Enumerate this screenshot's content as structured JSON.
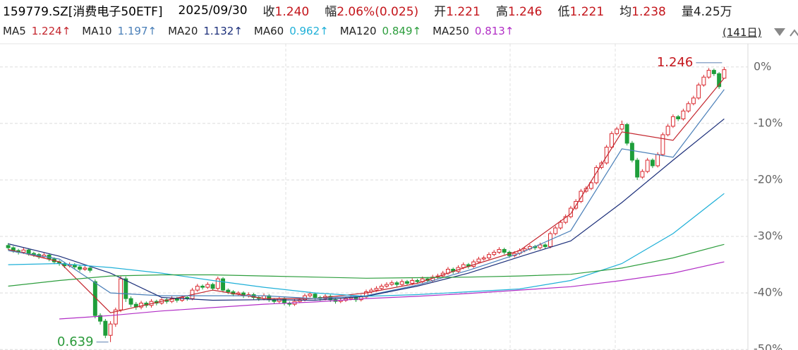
{
  "header": {
    "symbol": "159779.SZ[消费电子50ETF]",
    "date": "2025/09/30",
    "quotes": [
      {
        "label": "收",
        "value": "1.240",
        "color": "#c4161c"
      },
      {
        "label": "幅",
        "value": "2.06%(0.025)",
        "color": "#c4161c"
      },
      {
        "label": "开",
        "value": "1.221",
        "color": "#c4161c"
      },
      {
        "label": "高",
        "value": "1.246",
        "color": "#c4161c"
      },
      {
        "label": "低",
        "value": "1.221",
        "color": "#c4161c"
      },
      {
        "label": "均",
        "value": "1.238",
        "color": "#c4161c"
      },
      {
        "label": "量",
        "value": "4.25万",
        "color": "#222222"
      }
    ]
  },
  "chart_data": {
    "type": "candlestick",
    "period": "(141日)",
    "ylim": [
      -50.1,
      4.1
    ],
    "yticks": [
      {
        "value": 0,
        "label": "0%"
      },
      {
        "value": -10,
        "label": "-10%"
      },
      {
        "value": -20,
        "label": "-20%"
      },
      {
        "value": -30,
        "label": "-30%"
      },
      {
        "value": -40,
        "label": "-40%"
      },
      {
        "value": -50,
        "label": "-50%"
      }
    ],
    "grid": true,
    "up_color": "#d9262c",
    "down_color": "#1e9e3a",
    "annotations": [
      {
        "text": "1.246",
        "color": "#c4161c"
      },
      {
        "text": "0.639",
        "color": "#2a9a3a"
      }
    ],
    "ohlc": [
      [
        -31.6,
        -31.2,
        -32.4,
        -32
      ],
      [
        -32,
        -31.7,
        -32.9,
        -32.5
      ],
      [
        -32.5,
        -32.2,
        -33.2,
        -32.8
      ],
      [
        -32.8,
        -32,
        -33.1,
        -32.4
      ],
      [
        -32.4,
        -32.1,
        -33.4,
        -33
      ],
      [
        -33,
        -32.7,
        -33.6,
        -33.2
      ],
      [
        -33.2,
        -32.9,
        -34,
        -33.6
      ],
      [
        -33.6,
        -32.9,
        -33.9,
        -33.3
      ],
      [
        -33.3,
        -33,
        -34.4,
        -34
      ],
      [
        -34,
        -33.7,
        -34.9,
        -34.5
      ],
      [
        -34.5,
        -34.2,
        -35.2,
        -34.8
      ],
      [
        -34.8,
        -34.5,
        -35.6,
        -35.2
      ],
      [
        -35.2,
        -34.6,
        -35.5,
        -35
      ],
      [
        -35,
        -34.7,
        -35.8,
        -35.4
      ],
      [
        -35.4,
        -35.1,
        -36.2,
        -35.8
      ],
      [
        -35.8,
        -35.2,
        -36.1,
        -35.6
      ],
      [
        -35.6,
        -35.3,
        -36.4,
        -36
      ],
      [
        -38,
        -37.6,
        -44.5,
        -44
      ],
      [
        -44,
        -43.6,
        -45.6,
        -45
      ],
      [
        -45,
        -44.6,
        -48,
        -47.5
      ],
      [
        -47.5,
        -45,
        -48.7,
        -45.5
      ],
      [
        -45.5,
        -42.6,
        -46,
        -43
      ],
      [
        -43,
        -37,
        -43.4,
        -37.5
      ],
      [
        -37.5,
        -37.1,
        -41.6,
        -41
      ],
      [
        -41,
        -40.6,
        -42.5,
        -42
      ],
      [
        -42,
        -41.6,
        -43,
        -42.5
      ],
      [
        -42.5,
        -41.4,
        -42.9,
        -41.8
      ],
      [
        -41.8,
        -41.5,
        -42.6,
        -42.2
      ],
      [
        -42.2,
        -41.1,
        -42.6,
        -41.5
      ],
      [
        -41.5,
        -41.2,
        -42.2,
        -41.8
      ],
      [
        -41.8,
        -40.9,
        -42.1,
        -41.2
      ],
      [
        -41.2,
        -40.9,
        -41.9,
        -41.5
      ],
      [
        -41.5,
        -40.6,
        -41.8,
        -41
      ],
      [
        -41,
        -40.7,
        -41.7,
        -41.3
      ],
      [
        -41.3,
        -40.4,
        -41.6,
        -40.8
      ],
      [
        -40.8,
        -40.5,
        -41.4,
        -41
      ],
      [
        -41,
        -39.1,
        -41.3,
        -39.5
      ],
      [
        -39.5,
        -38.4,
        -39.8,
        -38.8
      ],
      [
        -38.8,
        -38.5,
        -39.4,
        -39
      ],
      [
        -39,
        -38.1,
        -39.3,
        -38.5
      ],
      [
        -38.5,
        -38.2,
        -39.6,
        -39.2
      ],
      [
        -39.2,
        -37.1,
        -39.5,
        -37.5
      ],
      [
        -37.5,
        -37.2,
        -39.9,
        -39.5
      ],
      [
        -39.5,
        -39.2,
        -40.2,
        -39.8
      ],
      [
        -39.8,
        -39.5,
        -40.6,
        -40.2
      ],
      [
        -40.2,
        -39.7,
        -40.5,
        -40
      ],
      [
        -40,
        -39.7,
        -40.9,
        -40.5
      ],
      [
        -40.5,
        -39.9,
        -40.8,
        -40.3
      ],
      [
        -40.3,
        -40,
        -41.2,
        -40.8
      ],
      [
        -40.8,
        -40.5,
        -41.4,
        -41
      ],
      [
        -41,
        -40.1,
        -41.3,
        -40.5
      ],
      [
        -40.5,
        -40.2,
        -41.6,
        -41.2
      ],
      [
        -41.2,
        -40.9,
        -41.9,
        -41.5
      ],
      [
        -41.5,
        -40.6,
        -41.8,
        -41
      ],
      [
        -41,
        -40.7,
        -42.2,
        -41.8
      ],
      [
        -41.8,
        -41.5,
        -42.4,
        -42
      ],
      [
        -42,
        -41.1,
        -42.3,
        -41.5
      ],
      [
        -41.5,
        -40.8,
        -41.8,
        -41.2
      ],
      [
        -41.2,
        -40.1,
        -41.5,
        -40.5
      ],
      [
        -40.5,
        -39.8,
        -40.8,
        -40.2
      ],
      [
        -40.2,
        -39.9,
        -41.2,
        -40.8
      ],
      [
        -40.8,
        -40.5,
        -41.4,
        -41
      ],
      [
        -41,
        -40.2,
        -41.3,
        -40.6
      ],
      [
        -40.6,
        -40.3,
        -41.6,
        -41.2
      ],
      [
        -41.2,
        -40.9,
        -41.9,
        -41.5
      ],
      [
        -41.5,
        -40.9,
        -41.8,
        -41.3
      ],
      [
        -41.3,
        -40.6,
        -41.6,
        -41
      ],
      [
        -41,
        -40.4,
        -41.3,
        -40.8
      ],
      [
        -40.8,
        -40.5,
        -41.6,
        -41.2
      ],
      [
        -41.2,
        -40.3,
        -41.5,
        -40.7
      ],
      [
        -40.7,
        -39.4,
        -41,
        -39.8
      ],
      [
        -39.8,
        -39.1,
        -40.1,
        -39.5
      ],
      [
        -39.5,
        -38.8,
        -39.8,
        -39.2
      ],
      [
        -39.2,
        -38.4,
        -39.5,
        -38.8
      ],
      [
        -38.8,
        -38.1,
        -39.1,
        -38.5
      ],
      [
        -38.5,
        -37.8,
        -38.8,
        -38.2
      ],
      [
        -38.2,
        -37.9,
        -38.9,
        -38.5
      ],
      [
        -38.5,
        -37.6,
        -38.8,
        -38
      ],
      [
        -38,
        -37.7,
        -38.7,
        -38.3
      ],
      [
        -38.3,
        -37.4,
        -38.6,
        -37.8
      ],
      [
        -37.8,
        -37.5,
        -38.4,
        -38
      ],
      [
        -38,
        -37.1,
        -38.3,
        -37.5
      ],
      [
        -37.5,
        -37.2,
        -38.2,
        -37.8
      ],
      [
        -37.8,
        -36.8,
        -38.1,
        -37.2
      ],
      [
        -37.2,
        -36.6,
        -37.5,
        -37
      ],
      [
        -37,
        -36.1,
        -37.3,
        -36.5
      ],
      [
        -36.5,
        -35.4,
        -36.8,
        -35.8
      ],
      [
        -35.8,
        -35.5,
        -36.6,
        -36.2
      ],
      [
        -36.2,
        -35.1,
        -36.5,
        -35.5
      ],
      [
        -35.5,
        -34.6,
        -35.8,
        -35
      ],
      [
        -35,
        -34.7,
        -35.7,
        -35.3
      ],
      [
        -35.3,
        -34.1,
        -35.6,
        -34.5
      ],
      [
        -34.5,
        -33.6,
        -34.8,
        -34
      ],
      [
        -34,
        -33.4,
        -34.3,
        -33.8
      ],
      [
        -33.8,
        -32.8,
        -34.1,
        -33.2
      ],
      [
        -33.2,
        -32.4,
        -33.5,
        -32.8
      ],
      [
        -32.8,
        -31.9,
        -33.1,
        -32.3
      ],
      [
        -32.3,
        -32,
        -33.2,
        -32.8
      ],
      [
        -32.8,
        -32.5,
        -33.8,
        -33.4
      ],
      [
        -33.4,
        -32.6,
        -33.7,
        -33
      ],
      [
        -33,
        -32.1,
        -33.3,
        -32.5
      ],
      [
        -32.5,
        -31.8,
        -32.8,
        -32.2
      ],
      [
        -32.2,
        -31.4,
        -32.5,
        -31.8
      ],
      [
        -31.8,
        -31.5,
        -32.4,
        -32
      ],
      [
        -32,
        -31.1,
        -32.3,
        -31.5
      ],
      [
        -31.5,
        -31.2,
        -32.2,
        -31.8
      ],
      [
        -31.8,
        -29.1,
        -32.1,
        -29.5
      ],
      [
        -29.5,
        -28.1,
        -29.8,
        -28.5
      ],
      [
        -28.5,
        -27.1,
        -28.8,
        -27.5
      ],
      [
        -27.5,
        -26.1,
        -27.8,
        -26.5
      ],
      [
        -26.5,
        -24.6,
        -26.8,
        -25
      ],
      [
        -25,
        -23.4,
        -25.3,
        -23.8
      ],
      [
        -23.8,
        -21.6,
        -24.1,
        -22
      ],
      [
        -22,
        -21.1,
        -22.3,
        -21.5
      ],
      [
        -21.5,
        -20.1,
        -21.8,
        -20.5
      ],
      [
        -20.5,
        -17.4,
        -20.8,
        -17.8
      ],
      [
        -17.8,
        -16.6,
        -18.1,
        -17
      ],
      [
        -17,
        -13.8,
        -17.3,
        -14.2
      ],
      [
        -14.2,
        -11.4,
        -14.5,
        -11.8
      ],
      [
        -11.8,
        -10.6,
        -12.1,
        -11
      ],
      [
        -11,
        -9.5,
        -11.3,
        -10.2
      ],
      [
        -10.2,
        -9.9,
        -13.9,
        -13.5
      ],
      [
        -13.5,
        -13.1,
        -16.9,
        -16.5
      ],
      [
        -16.5,
        -16.1,
        -20,
        -19.5
      ],
      [
        -19.5,
        -18.1,
        -19.8,
        -18.5
      ],
      [
        -18.5,
        -16.1,
        -18.8,
        -16.5
      ],
      [
        -16.5,
        -16.2,
        -17.9,
        -17.5
      ],
      [
        -17.5,
        -15.1,
        -17.8,
        -15.5
      ],
      [
        -15.5,
        -11.6,
        -15.8,
        -12
      ],
      [
        -12,
        -10.1,
        -12.3,
        -10.5
      ],
      [
        -10.5,
        -8.4,
        -10.8,
        -8.8
      ],
      [
        -8.8,
        -8.5,
        -9.6,
        -9.2
      ],
      [
        -9.2,
        -7.4,
        -9.5,
        -7.8
      ],
      [
        -7.8,
        -6.1,
        -8.1,
        -6.5
      ],
      [
        -6.5,
        -5.1,
        -6.8,
        -5.5
      ],
      [
        -5.5,
        -2.8,
        -5.8,
        -3.2
      ],
      [
        -3.2,
        -1.4,
        -3.5,
        -1.8
      ],
      [
        -1.8,
        -0.2,
        -2.1,
        -0.6
      ],
      [
        -0.6,
        -0.3,
        -1.6,
        -1.2
      ],
      [
        -1.2,
        -0.9,
        -3.9,
        -3.5
      ],
      [
        -2,
        0,
        -2,
        -0.48
      ]
    ],
    "x": [
      0,
      10,
      20,
      30,
      40,
      50,
      60,
      70,
      80,
      90,
      100,
      110,
      120,
      130,
      140
    ],
    "series": [
      {
        "name": "MA5",
        "legend_value": "1.224↑",
        "color": "#c4262e",
        "values": [
          -32.3,
          -34.5,
          -43.5,
          -41.5,
          -39.5,
          -41,
          -41,
          -40,
          -38.3,
          -35.3,
          -32.5,
          -26,
          -11.5,
          -13,
          -2
        ]
      },
      {
        "name": "MA10",
        "legend_value": "1.197↑",
        "color": "#4a7fb8",
        "values": [
          -32.5,
          -34,
          -40,
          -40.5,
          -40.5,
          -40.5,
          -41,
          -40.5,
          -38.6,
          -36,
          -33,
          -29,
          -14.5,
          -16,
          -4
        ]
      },
      {
        "name": "MA20",
        "legend_value": "1.132↑",
        "color": "#1c2f7a",
        "values": [
          -31.3,
          -33.5,
          -36.5,
          -40.8,
          -41.3,
          -41.2,
          -41.3,
          -40.6,
          -38.8,
          -36.5,
          -33.6,
          -30.8,
          -24,
          -16.5,
          -9.2
        ]
      },
      {
        "name": "MA60",
        "legend_value": "0.962↑",
        "color": "#1fb0d8",
        "values": [
          -35,
          -34.8,
          -35.5,
          -36.5,
          -37.8,
          -39,
          -40,
          -40.6,
          -40.3,
          -39.8,
          -39.3,
          -37.8,
          -34.8,
          -29.5,
          -22.4
        ]
      },
      {
        "name": "MA120",
        "legend_value": "0.849↑",
        "color": "#2e9e3e",
        "values": [
          -38.8,
          -37.8,
          -37,
          -36.8,
          -36.8,
          -37,
          -37.2,
          -37.4,
          -37.3,
          -37.2,
          -37,
          -36.7,
          -35.6,
          -33.8,
          -31.4
        ]
      },
      {
        "name": "MA250",
        "legend_value": "0.813↑",
        "color": "#b22fc6",
        "values": [
          null,
          -44.6,
          -44,
          -43.2,
          -42.6,
          -42,
          -41.6,
          -41,
          -40.6,
          -40.1,
          -39.5,
          -38.9,
          -37.8,
          -36.5,
          -34.5
        ]
      }
    ]
  }
}
